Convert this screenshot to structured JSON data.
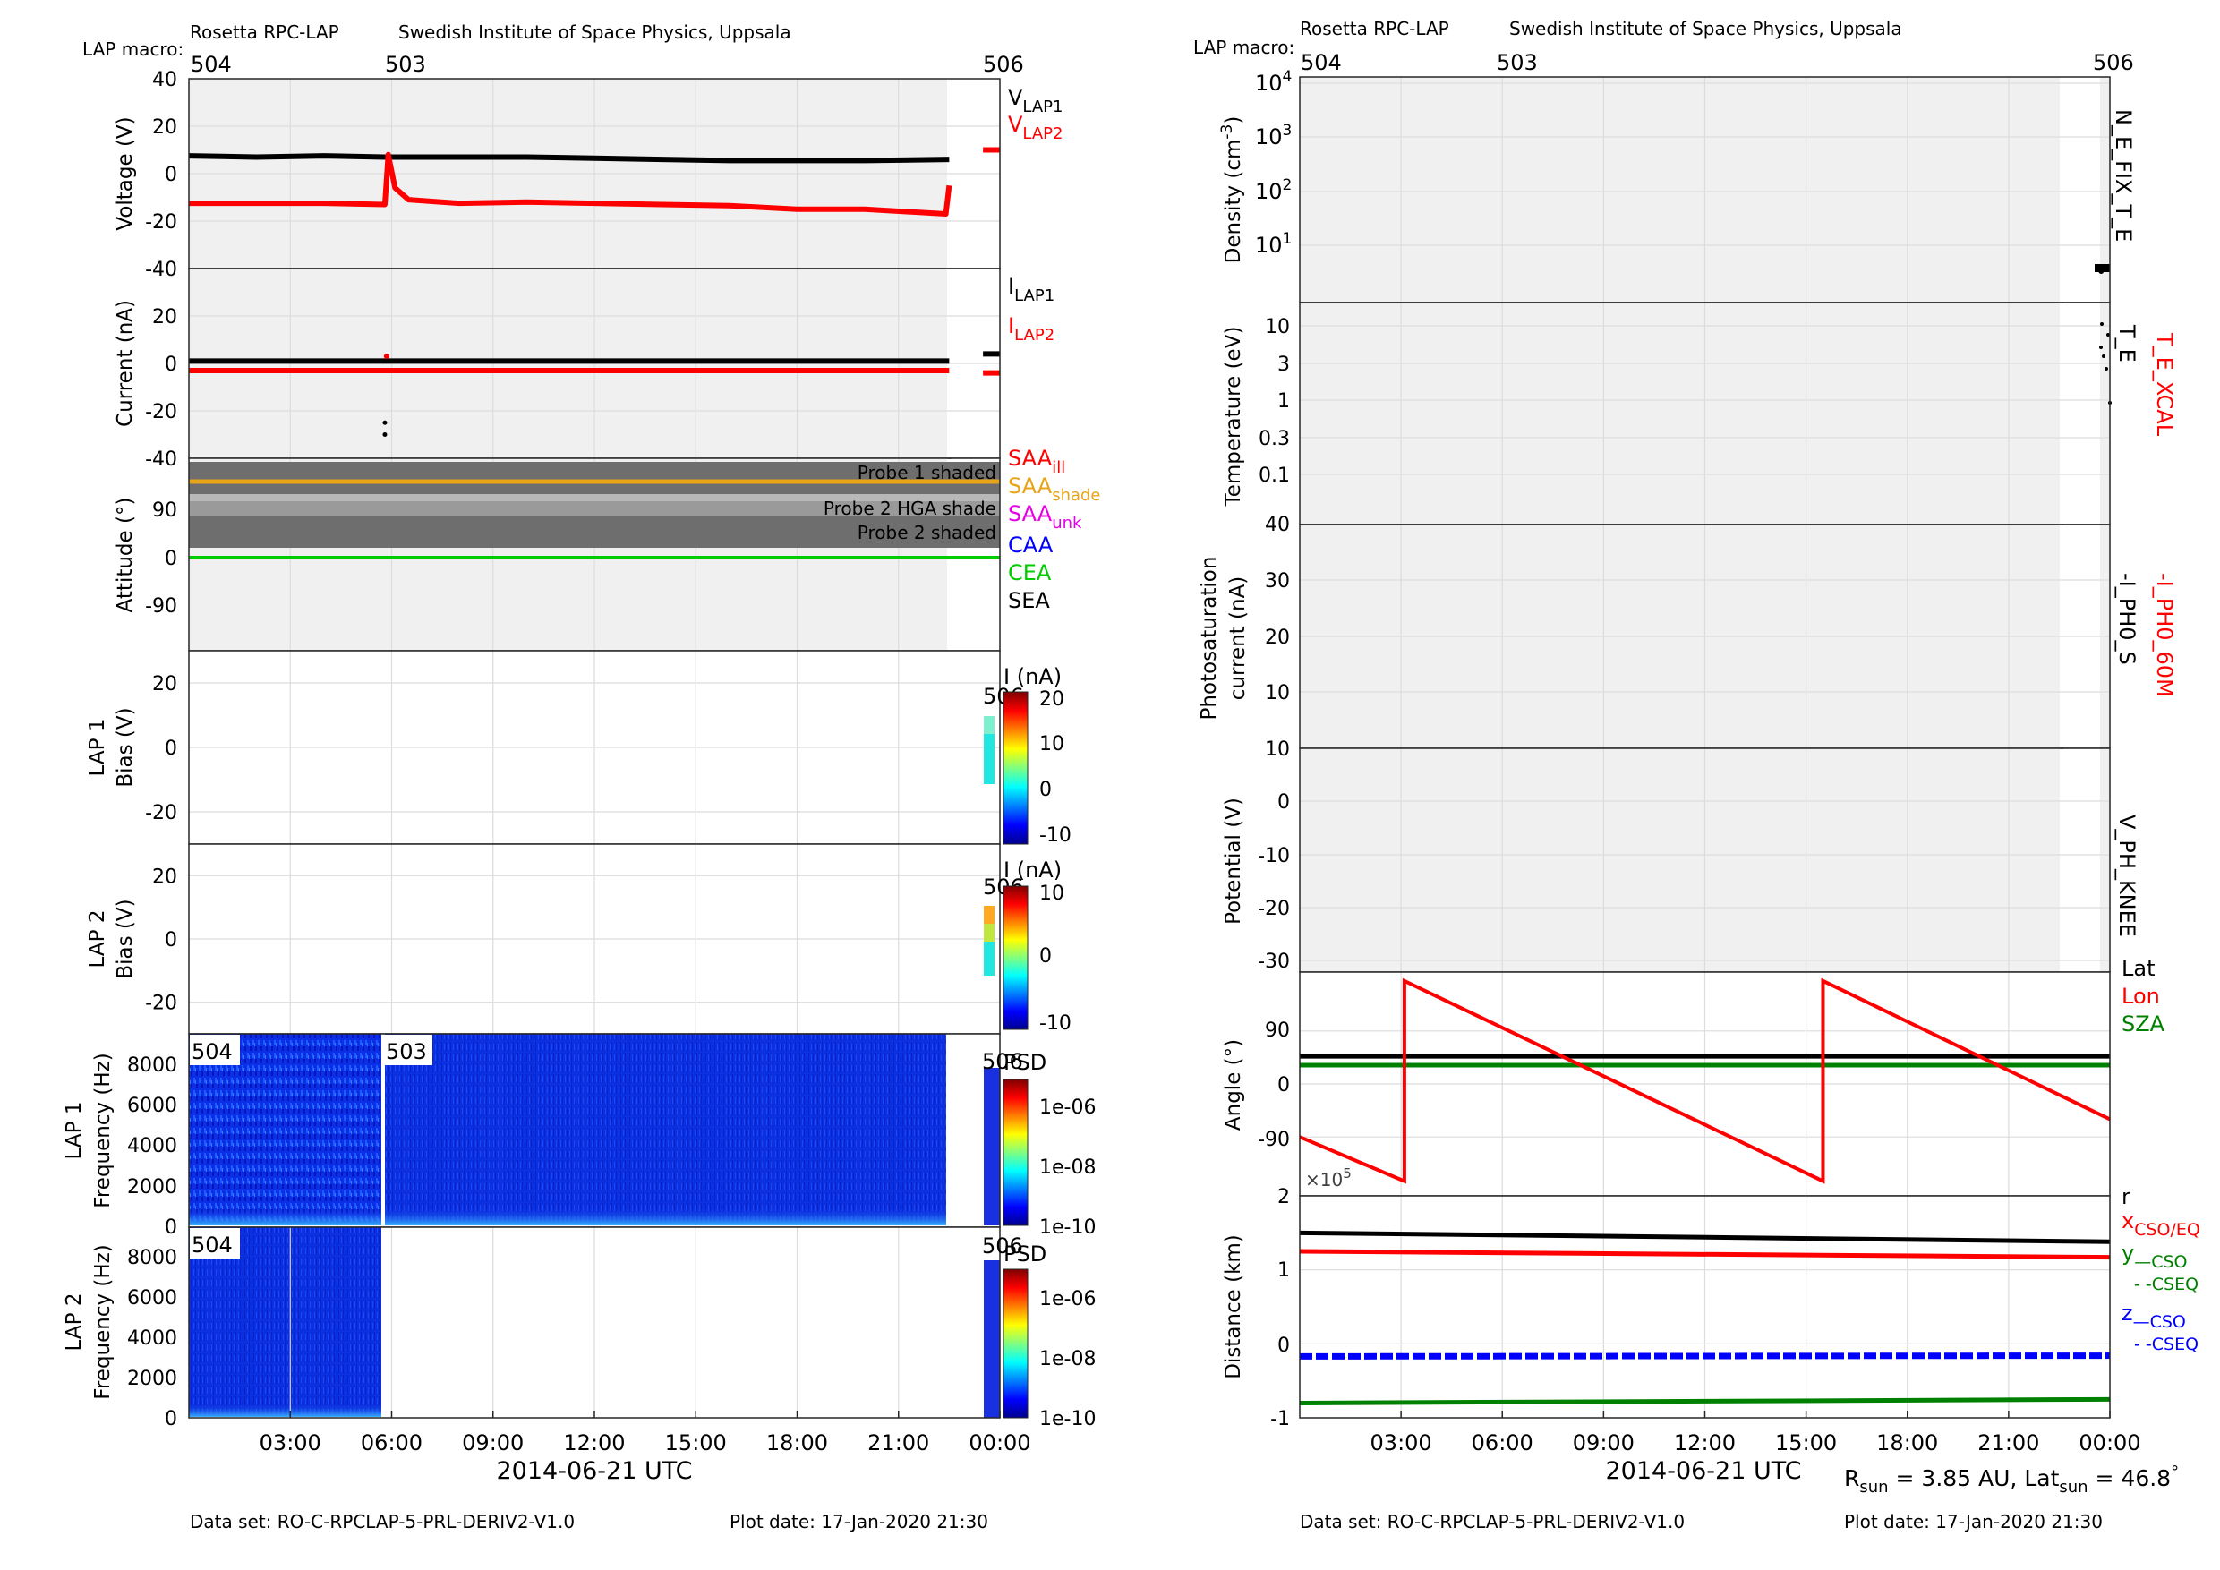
{
  "header": {
    "instrument": "Rosetta RPC-LAP",
    "institute": "Swedish Institute of Space Physics, Uppsala",
    "macro_label": "LAP macro:",
    "macros": [
      {
        "label": "504",
        "hour": 0
      },
      {
        "label": "503",
        "hour": 5.85
      },
      {
        "label": "506",
        "hour": 24
      }
    ]
  },
  "footer": {
    "dataset": "Data set: RO-C-RPCLAP-5-PRL-DERIV2-V1.0",
    "plotdate": "Plot date: 17-Jan-2020 21:30",
    "xlabel": "2014-06-21 UTC",
    "rsun": "R",
    "rsun_sub": "sun",
    "rsun_val": " = 3.85 AU, Lat",
    "lat_sub": "sun",
    "lat_val": " = 46.8",
    "deg": "°"
  },
  "xaxis": {
    "ticks": [
      "03:00",
      "06:00",
      "09:00",
      "12:00",
      "15:00",
      "18:00",
      "21:00",
      "00:00"
    ],
    "tick_hours": [
      3,
      6,
      9,
      12,
      15,
      18,
      21,
      24
    ]
  },
  "colors": {
    "black": "#000000",
    "red": "#ff0000",
    "orange": "#e8a317",
    "magenta": "#e800e8",
    "blue": "#0000ff",
    "green": "#00cc00",
    "darkgreen": "#008000",
    "shade": "#f0f0f0",
    "grid": "#e1e1e1"
  },
  "chart_data": [
    {
      "id": "voltage",
      "type": "scatter",
      "ylabel": "Voltage (V)",
      "ylim": [
        -40,
        40
      ],
      "yticks": [
        40,
        20,
        0,
        -20,
        -40
      ],
      "legend": [
        {
          "name": "V",
          "sub": "LAP1",
          "color": "#000000"
        },
        {
          "name": "V",
          "sub": "LAP2",
          "color": "#ff0000"
        }
      ],
      "series": [
        {
          "name": "VLAP1",
          "color": "#000000",
          "x": [
            0,
            2,
            4,
            5.8,
            6,
            8,
            10,
            12,
            14,
            16,
            18,
            20,
            22.5
          ],
          "y": [
            7.5,
            7,
            7.5,
            7,
            7,
            7,
            7,
            6.5,
            6,
            5.5,
            5.5,
            5.5,
            6
          ]
        },
        {
          "name": "VLAP2",
          "color": "#ff0000",
          "x": [
            0,
            2,
            4,
            5.8,
            5.9,
            6.1,
            6.5,
            8,
            10,
            12,
            14,
            16,
            18,
            20,
            22.4,
            22.5
          ],
          "y": [
            -12.5,
            -12.5,
            -12.5,
            -13,
            8,
            -6,
            -11,
            -12.5,
            -12,
            -12.5,
            -13,
            -13.5,
            -15,
            -15,
            -17,
            -5
          ]
        },
        {
          "name": "VLAP2-506",
          "color": "#ff0000",
          "x": [
            23.5,
            24
          ],
          "y": [
            10,
            10
          ]
        }
      ]
    },
    {
      "id": "current",
      "type": "scatter",
      "ylabel": "Current (nA)",
      "ylim": [
        -40,
        40
      ],
      "yticks": [
        20,
        0,
        -20,
        -40
      ],
      "legend": [
        {
          "name": "I",
          "sub": "LAP1",
          "color": "#000000"
        },
        {
          "name": "I",
          "sub": "LAP2",
          "color": "#ff0000"
        }
      ],
      "series": [
        {
          "name": "ILAP1",
          "color": "#000000",
          "x": [
            0,
            22.5
          ],
          "y": [
            1,
            1
          ]
        },
        {
          "name": "ILAP2",
          "color": "#ff0000",
          "x": [
            0,
            22.5
          ],
          "y": [
            -3,
            -3
          ]
        },
        {
          "name": "ILAP1-506",
          "color": "#000000",
          "x": [
            23.5,
            24
          ],
          "y": [
            4,
            4
          ]
        },
        {
          "name": "ILAP2-506",
          "color": "#ff0000",
          "x": [
            23.5,
            24
          ],
          "y": [
            -4,
            -4
          ]
        }
      ],
      "points": [
        {
          "x": 5.8,
          "y": -25
        },
        {
          "x": 5.8,
          "y": -30
        }
      ]
    },
    {
      "id": "attitude",
      "type": "line",
      "ylabel": "Attitude (°)",
      "yticks": [
        "90",
        "0",
        "-90"
      ],
      "bands": [
        "Probe 1 shaded",
        "Probe 2 HGA shade",
        "Probe 2 shaded"
      ],
      "legend": [
        {
          "name": "SAA",
          "sub": "ill",
          "color": "#ff0000"
        },
        {
          "name": "SAA",
          "sub": "shade",
          "color": "#e8a317"
        },
        {
          "name": "SAA",
          "sub": "unk",
          "color": "#e800e8"
        },
        {
          "name": "CAA",
          "sub": "",
          "color": "#0000ff"
        },
        {
          "name": "CEA",
          "sub": "",
          "color": "#00cc00"
        },
        {
          "name": "SEA",
          "sub": "",
          "color": "#000000"
        }
      ],
      "series": [
        {
          "name": "SAA shade",
          "color": "#e8a317",
          "value": 140
        },
        {
          "name": "CEA",
          "color": "#00cc00",
          "value": 0
        }
      ]
    },
    {
      "id": "lap1bias",
      "type": "heatmap",
      "ylabel1": "LAP 1",
      "ylabel2": "Bias (V)",
      "ylim": [
        -30,
        30
      ],
      "yticks": [
        20,
        0,
        -20
      ],
      "colorbar": {
        "title": "I (nA)",
        "ticks": [
          "20",
          "10",
          "0",
          "-10"
        ]
      },
      "macro": "506"
    },
    {
      "id": "lap2bias",
      "type": "heatmap",
      "ylabel1": "LAP 2",
      "ylabel2": "Bias (V)",
      "ylim": [
        -30,
        30
      ],
      "yticks": [
        20,
        0,
        -20
      ],
      "colorbar": {
        "title": "I (nA)",
        "ticks": [
          "10",
          "0",
          "-10"
        ]
      },
      "macro": "506"
    },
    {
      "id": "lap1psd",
      "type": "heatmap",
      "ylabel1": "LAP 1",
      "ylabel2": "Frequency (Hz)",
      "ylim": [
        0,
        9400
      ],
      "yticks": [
        "8000",
        "6000",
        "4000",
        "2000",
        "0"
      ],
      "colorbar": {
        "title": "PSD",
        "ticks": [
          "1e-06",
          "1e-08",
          "1e-10"
        ]
      },
      "macros": [
        "504",
        "503",
        "506"
      ]
    },
    {
      "id": "lap2psd",
      "type": "heatmap",
      "ylabel1": "LAP 2",
      "ylabel2": "Frequency (Hz)",
      "ylim": [
        0,
        9400
      ],
      "yticks": [
        "8000",
        "6000",
        "4000",
        "2000",
        "0"
      ],
      "colorbar": {
        "title": "PSD",
        "ticks": [
          "1e-06",
          "1e-08",
          "1e-10"
        ]
      },
      "macros": [
        "504",
        "506"
      ]
    },
    {
      "id": "density",
      "type": "scatter",
      "ylabel": "Density (cm",
      "ylabel_sup": "-3",
      "ylabel_end": ")",
      "scale": "log",
      "ylim": [
        1,
        10000
      ],
      "yticks": [
        "4",
        "3",
        "2",
        "1"
      ],
      "rlabel": "N_E_FIX_T_E",
      "points": [
        {
          "x": 23.8,
          "y": 4
        },
        {
          "x": 23.9,
          "y": 3.8
        },
        {
          "x": 24,
          "y": 4.1
        }
      ]
    },
    {
      "id": "temperature",
      "type": "scatter",
      "ylabel": "Temperature (eV)",
      "scale": "log",
      "yticks": [
        "10",
        "3",
        "1",
        "0.3",
        "0.1"
      ],
      "rlabel_black": "T_E",
      "rlabel_red": "T_E_XCAL"
    },
    {
      "id": "photosat",
      "type": "line",
      "ylabel1": "Photosaturation",
      "ylabel2": "current (nA)",
      "ylim": [
        10,
        40
      ],
      "yticks": [
        "40",
        "30",
        "20",
        "10"
      ],
      "rlabel_black": "-I_PH0_S",
      "rlabel_red": "-I_PH0_60M"
    },
    {
      "id": "potential",
      "type": "line",
      "ylabel": "Potential (V)",
      "ylim": [
        -32,
        10
      ],
      "yticks": [
        "10",
        "0",
        "-10",
        "-20",
        "-30"
      ],
      "rlabel": "V_PH_KNEE"
    },
    {
      "id": "angle",
      "type": "line",
      "ylabel": "Angle (°)",
      "ylim": [
        -190,
        190
      ],
      "yticks": [
        "90",
        "0",
        "-90"
      ],
      "legend": [
        {
          "name": "Lat",
          "color": "#000000"
        },
        {
          "name": "Lon",
          "color": "#ff0000"
        },
        {
          "name": "SZA",
          "color": "#008000"
        }
      ],
      "series": [
        {
          "name": "Lat",
          "color": "#000000",
          "x": [
            0,
            24
          ],
          "y": [
            47,
            47
          ]
        },
        {
          "name": "SZA",
          "color": "#008000",
          "x": [
            0,
            24
          ],
          "y": [
            32,
            32
          ]
        },
        {
          "name": "Lon",
          "color": "#ff0000",
          "x": [
            0,
            3.1,
            3.1,
            15.5,
            15.5,
            24
          ],
          "y": [
            -90,
            -165,
            175,
            -165,
            175,
            -60
          ]
        }
      ]
    },
    {
      "id": "distance",
      "type": "line",
      "ylabel": "Distance (km)",
      "ylim": [
        -1,
        2
      ],
      "yticks": [
        "2",
        "1",
        "0",
        "-1"
      ],
      "exponent": "×10",
      "exponent_sup": "5",
      "legend": [
        {
          "name": "r",
          "color": "#000000"
        },
        {
          "name": "x",
          "sub": "CSO/EQ",
          "color": "#ff0000"
        },
        {
          "name": "y",
          "sub": "—CSO",
          "color": "#008000",
          "extra": "- -CSEQ"
        },
        {
          "name": "z",
          "sub": "—CSO",
          "color": "#0000ff",
          "extra": "- -CSEQ"
        }
      ],
      "series": [
        {
          "name": "r",
          "color": "#000000",
          "x": [
            0,
            24
          ],
          "y": [
            1.5,
            1.38
          ]
        },
        {
          "name": "x",
          "color": "#ff0000",
          "x": [
            0,
            24
          ],
          "y": [
            1.25,
            1.17
          ]
        },
        {
          "name": "z",
          "color": "#0000ff",
          "x": [
            0,
            24
          ],
          "y": [
            -0.17,
            -0.16
          ]
        },
        {
          "name": "y",
          "color": "#008000",
          "x": [
            0,
            24
          ],
          "y": [
            -0.8,
            -0.75
          ]
        }
      ]
    }
  ]
}
